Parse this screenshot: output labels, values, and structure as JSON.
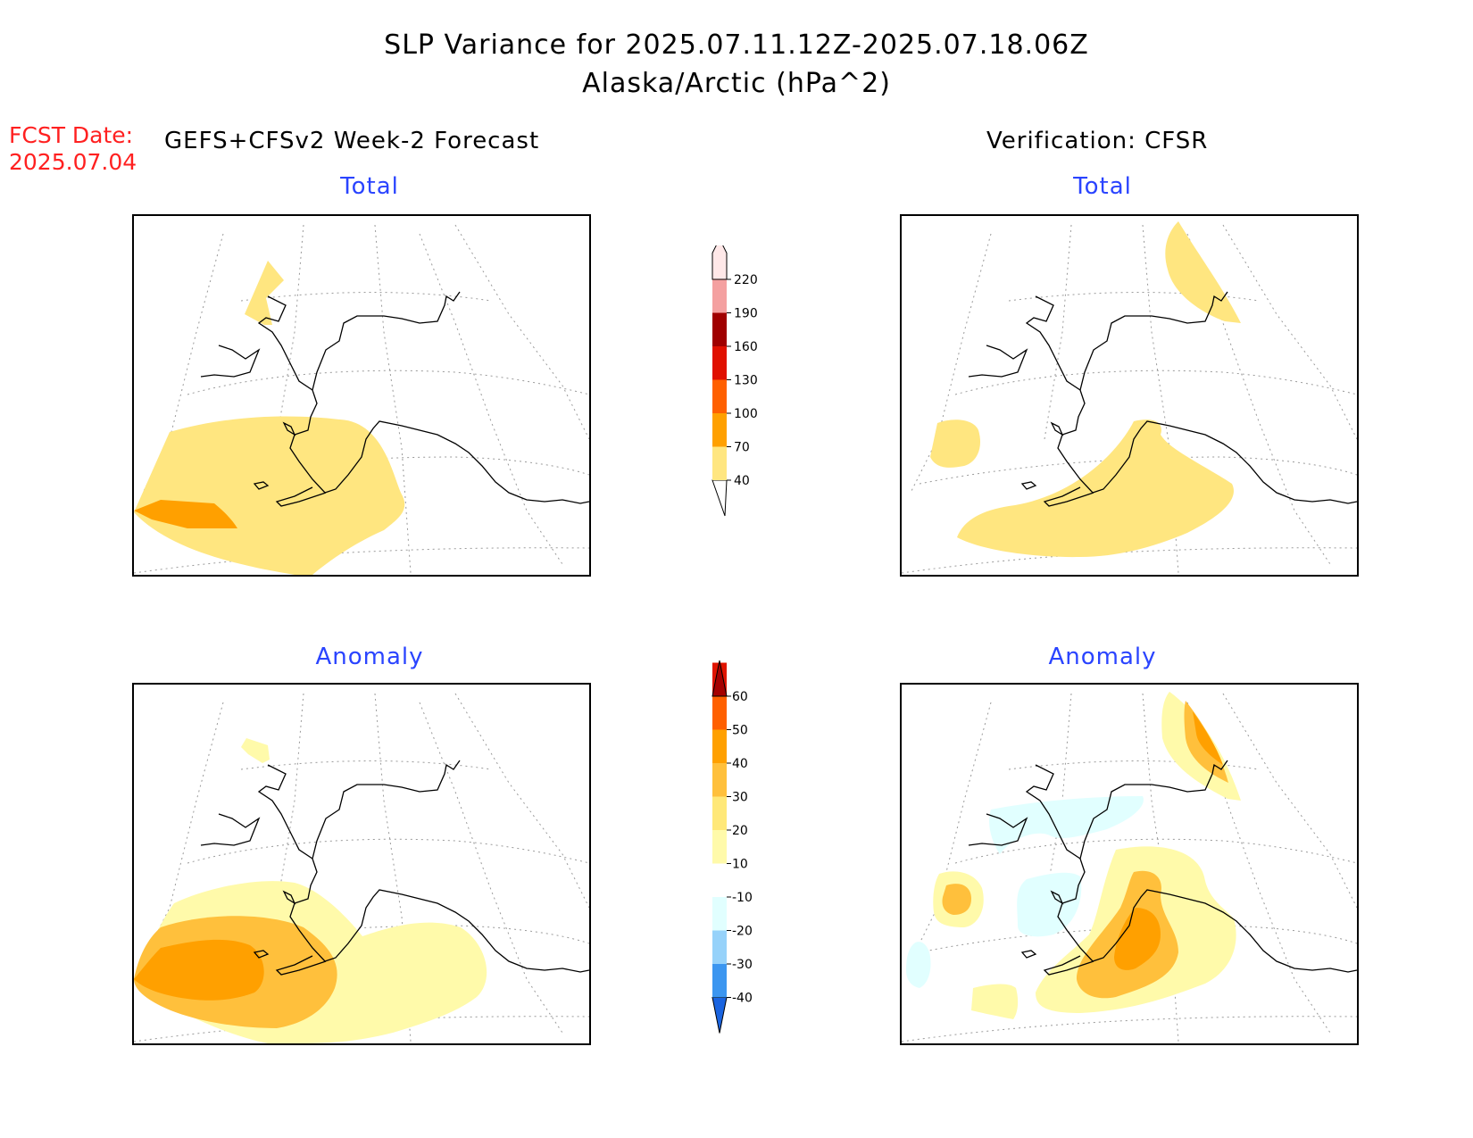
{
  "title_line1": "SLP Variance for 2025.07.11.12Z-2025.07.18.06Z",
  "title_line2": "Alaska/Arctic (hPa^2)",
  "fcst_label": "FCST Date:",
  "fcst_date": "2025.07.04",
  "left_header": "GEFS+CFSv2 Week-2 Forecast",
  "right_header": "Verification: CFSR",
  "panels": {
    "top_left_title": "Total",
    "top_right_title": "Total",
    "bottom_left_title": "Anomaly",
    "bottom_right_title": "Anomaly"
  },
  "colorbar_total": {
    "levels": [
      "40",
      "70",
      "100",
      "130",
      "160",
      "190",
      "220"
    ],
    "colors": [
      "#ffe680",
      "#ffa000",
      "#ff6000",
      "#e01000",
      "#a00000",
      "#f4a0a0",
      "#ffe8e8"
    ]
  },
  "colorbar_anomaly": {
    "levels": [
      "-40",
      "-30",
      "-20",
      "-10",
      "10",
      "20",
      "30",
      "40",
      "50",
      "60"
    ],
    "colors": [
      "#1a64e0",
      "#3c96f0",
      "#96d2fa",
      "#e1ffff",
      "#ffffff",
      "#fffaaa",
      "#ffe878",
      "#ffc03c",
      "#ffa000",
      "#ff6000",
      "#e01400",
      "#a50000"
    ]
  }
}
